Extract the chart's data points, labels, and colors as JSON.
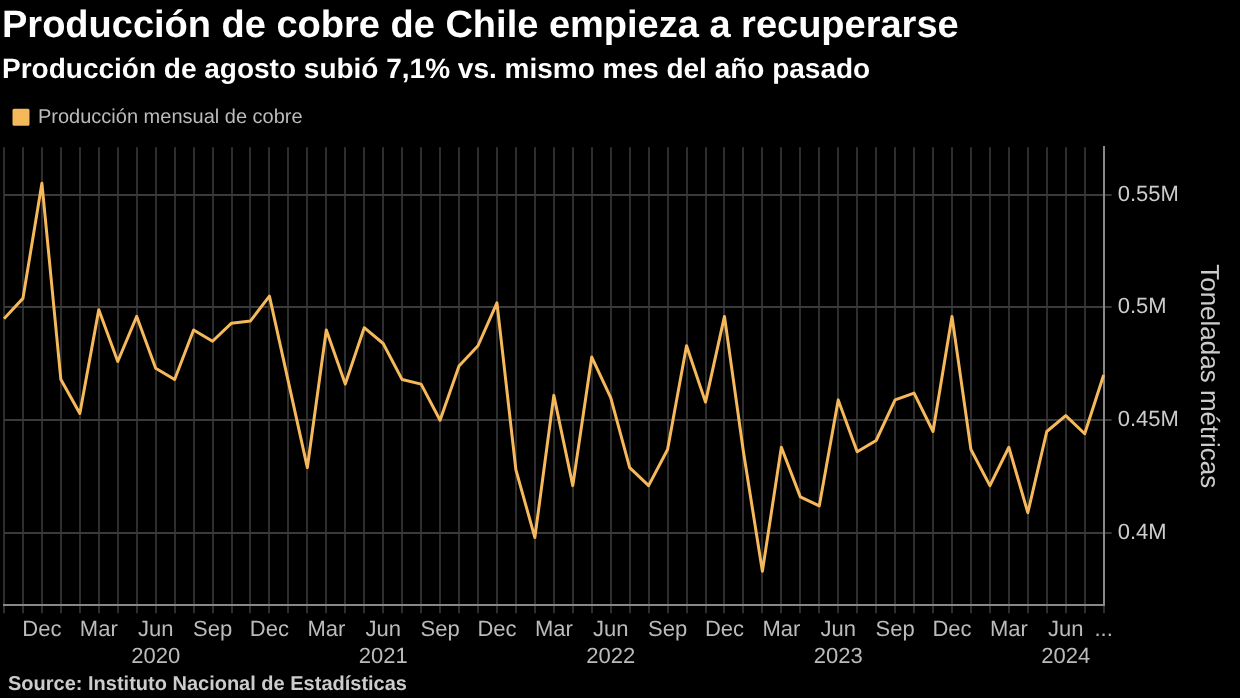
{
  "chart_data": {
    "type": "line",
    "title": "Producción de cobre de Chile empieza a recuperarse",
    "subtitle": "Producción de agosto subió 7,1% vs. mismo mes del año pasado",
    "ylabel": "Toneladas métricas",
    "categories": [
      null,
      null,
      "Dec",
      null,
      null,
      "Mar",
      null,
      null,
      "Jun\n2020",
      null,
      null,
      "Sep",
      null,
      null,
      "Dec",
      null,
      null,
      "Mar",
      null,
      null,
      "Jun\n2021",
      null,
      null,
      "Sep",
      null,
      null,
      "Dec",
      null,
      null,
      "Mar",
      null,
      null,
      "Jun\n2022",
      null,
      null,
      "Sep",
      null,
      null,
      "Dec",
      null,
      null,
      "Mar",
      null,
      null,
      "Jun\n2023",
      null,
      null,
      "Sep",
      null,
      null,
      "Dec",
      null,
      null,
      "Mar",
      null,
      null,
      "Jun\n2024",
      null,
      "..."
    ],
    "series": [
      {
        "name": "Producción mensual de cobre",
        "color": "#f5b85a",
        "values": [
          0.495,
          0.504,
          0.555,
          0.468,
          0.453,
          0.499,
          0.476,
          0.496,
          0.473,
          0.468,
          0.49,
          0.485,
          0.493,
          0.494,
          0.505,
          0.467,
          0.429,
          0.49,
          0.466,
          0.491,
          0.484,
          0.468,
          0.466,
          0.45,
          0.474,
          0.483,
          0.502,
          0.428,
          0.398,
          0.461,
          0.421,
          0.478,
          0.46,
          0.429,
          0.421,
          0.437,
          0.483,
          0.458,
          0.496,
          0.436,
          0.383,
          0.438,
          0.416,
          0.412,
          0.459,
          0.436,
          0.441,
          0.459,
          0.462,
          0.445,
          0.496,
          0.437,
          0.421,
          0.438,
          0.409,
          0.445,
          0.452,
          0.444,
          0.47
        ]
      }
    ],
    "ylim": [
      0.368,
      0.571
    ],
    "yticks": [
      {
        "value": 0.4,
        "label": "0.4M"
      },
      {
        "value": 0.45,
        "label": "0.45M"
      },
      {
        "value": 0.5,
        "label": "0.5M"
      },
      {
        "value": 0.55,
        "label": "0.55M"
      }
    ],
    "grid": true,
    "legend": "top left",
    "marker": "none",
    "line_style": "solid",
    "annotations": [
      "Source: Instituto Nacional de Estadísticas"
    ]
  }
}
